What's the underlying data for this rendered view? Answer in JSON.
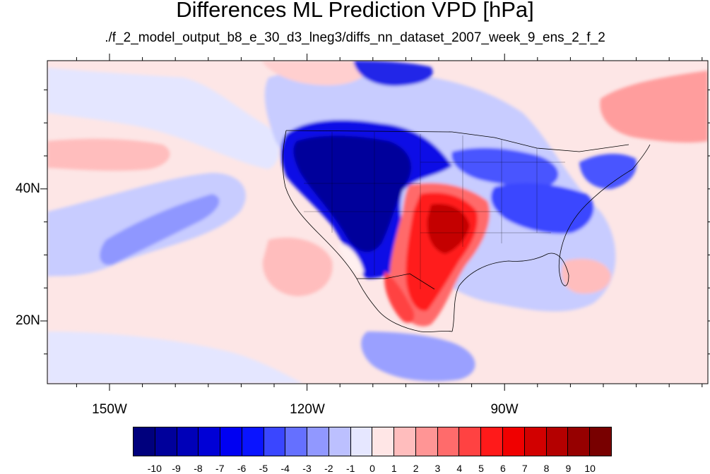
{
  "title": "Differences ML Prediction VPD [hPa]",
  "subtitle": "./f_2_model_output_b8_e_30_d3_lneg3/diffs_nn_dataset_2007_week_9_ens_2_f_2",
  "axes": {
    "lon_labels": [
      "150W",
      "120W",
      "90W"
    ],
    "lat_labels": [
      "40N",
      "20N"
    ]
  },
  "colorbar": {
    "tick_labels": [
      "-10",
      "-9",
      "-8",
      "-7",
      "-6",
      "-5",
      "-4",
      "-3",
      "-2",
      "-1",
      "0",
      "1",
      "2",
      "3",
      "4",
      "5",
      "6",
      "7",
      "8",
      "9",
      "10"
    ],
    "colors": [
      "#00007d",
      "#00009b",
      "#0000b8",
      "#0000d6",
      "#0000f2",
      "#0a14ff",
      "#3a46ff",
      "#6570ff",
      "#9198ff",
      "#bcc0ff",
      "#e6e7ff",
      "#ffe6e6",
      "#ffbdbd",
      "#ff9595",
      "#ff6b6b",
      "#ff4242",
      "#ff1a1a",
      "#f00000",
      "#d20000",
      "#b40000",
      "#960000",
      "#780000"
    ]
  },
  "legend_colors": {
    "ocean_background": "#fde6e6",
    "strong_negative": "#0000a0",
    "strong_positive": "#d80000"
  }
}
